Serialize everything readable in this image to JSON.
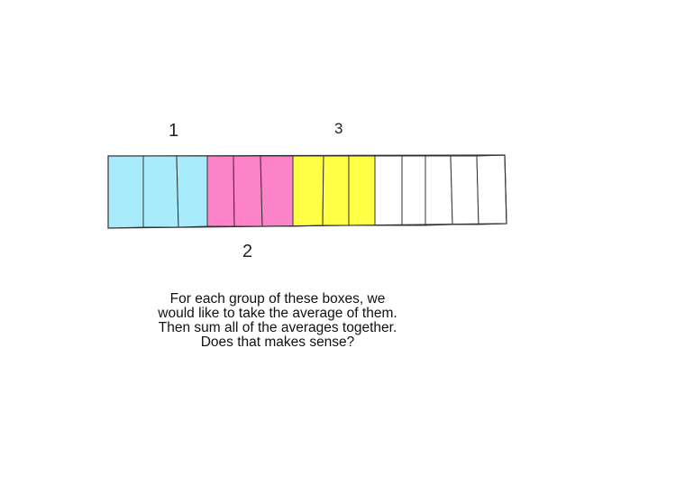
{
  "labels": {
    "group_1": "1",
    "group_2": "2",
    "group_3": "3"
  },
  "caption": {
    "lines": [
      "For each group of these boxes, we",
      "would like to take the average of them.",
      "Then sum all of the averages together.",
      "Does that makes sense?"
    ]
  },
  "boxes": {
    "groups": [
      {
        "name": "group-1",
        "color": "#a8ecfb",
        "count": 3
      },
      {
        "name": "group-2",
        "color": "#fd83c8",
        "count": 3
      },
      {
        "name": "group-3",
        "color": "#ffff46",
        "count": 3
      },
      {
        "name": "ungrouped",
        "color": "#ffffff",
        "count": 5
      }
    ],
    "stroke_color": "#333333"
  }
}
